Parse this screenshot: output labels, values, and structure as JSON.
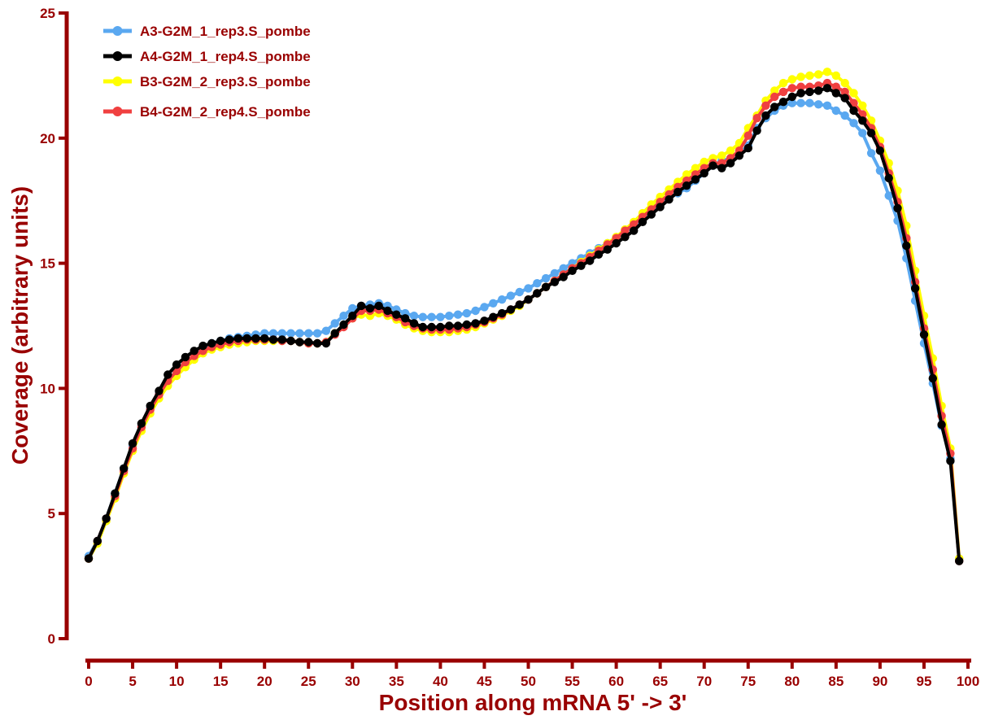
{
  "chart_data": {
    "type": "line",
    "title": "",
    "xlabel": "Position along mRNA 5' -> 3'",
    "ylabel": "Coverage (arbitrary units)",
    "xlim": [
      0,
      100
    ],
    "ylim": [
      0,
      25
    ],
    "xticks": [
      0,
      5,
      10,
      15,
      20,
      25,
      30,
      35,
      40,
      45,
      50,
      55,
      60,
      65,
      70,
      75,
      80,
      85,
      90,
      95,
      100
    ],
    "yticks": [
      0,
      5,
      10,
      15,
      20,
      25
    ],
    "legend_position": "top-left",
    "grid": false,
    "axis_color": "#990000",
    "x": [
      0,
      1,
      2,
      3,
      4,
      5,
      6,
      7,
      8,
      9,
      10,
      11,
      12,
      13,
      14,
      15,
      16,
      17,
      18,
      19,
      20,
      21,
      22,
      23,
      24,
      25,
      26,
      27,
      28,
      29,
      30,
      31,
      32,
      33,
      34,
      35,
      36,
      37,
      38,
      39,
      40,
      41,
      42,
      43,
      44,
      45,
      46,
      47,
      48,
      49,
      50,
      51,
      52,
      53,
      54,
      55,
      56,
      57,
      58,
      59,
      60,
      61,
      62,
      63,
      64,
      65,
      66,
      67,
      68,
      69,
      70,
      71,
      72,
      73,
      74,
      75,
      76,
      77,
      78,
      79,
      80,
      81,
      82,
      83,
      84,
      85,
      86,
      87,
      88,
      89,
      90,
      91,
      92,
      93,
      94,
      95,
      96,
      97,
      98,
      99
    ],
    "series": [
      {
        "name": "A3-G2M_1_rep3.S_pombe",
        "color": "#5aa8f0",
        "values": [
          3.3,
          3.9,
          4.8,
          5.8,
          6.8,
          7.7,
          8.5,
          9.2,
          9.8,
          10.3,
          10.7,
          11.0,
          11.3,
          11.6,
          11.8,
          11.9,
          12.0,
          12.05,
          12.1,
          12.15,
          12.2,
          12.2,
          12.2,
          12.2,
          12.2,
          12.2,
          12.2,
          12.3,
          12.6,
          12.9,
          13.2,
          13.3,
          13.35,
          13.4,
          13.3,
          13.15,
          13.0,
          12.9,
          12.85,
          12.85,
          12.85,
          12.9,
          12.95,
          13.0,
          13.1,
          13.25,
          13.4,
          13.55,
          13.7,
          13.85,
          14.0,
          14.2,
          14.4,
          14.6,
          14.8,
          15.0,
          15.2,
          15.4,
          15.6,
          15.8,
          16.0,
          16.25,
          16.5,
          16.8,
          17.1,
          17.4,
          17.6,
          17.8,
          18.0,
          18.3,
          18.6,
          18.9,
          19.1,
          19.2,
          19.4,
          19.7,
          20.4,
          20.8,
          21.1,
          21.3,
          21.4,
          21.4,
          21.4,
          21.35,
          21.3,
          21.1,
          20.9,
          20.6,
          20.2,
          19.4,
          18.7,
          17.7,
          16.7,
          15.2,
          13.5,
          11.8,
          10.2,
          8.5,
          7.2,
          3.2
        ]
      },
      {
        "name": "A4-G2M_1_rep4.S_pombe",
        "color": "#000000",
        "values": [
          3.2,
          3.9,
          4.8,
          5.8,
          6.8,
          7.8,
          8.6,
          9.3,
          9.9,
          10.55,
          10.95,
          11.25,
          11.5,
          11.7,
          11.8,
          11.9,
          11.95,
          12.0,
          12.0,
          12.0,
          12.0,
          11.95,
          11.95,
          11.9,
          11.85,
          11.85,
          11.8,
          11.8,
          12.2,
          12.55,
          12.9,
          13.3,
          13.2,
          13.3,
          13.1,
          12.95,
          12.8,
          12.6,
          12.45,
          12.45,
          12.45,
          12.5,
          12.5,
          12.55,
          12.6,
          12.7,
          12.85,
          13.0,
          13.15,
          13.35,
          13.55,
          13.8,
          14.05,
          14.25,
          14.45,
          14.7,
          14.9,
          15.1,
          15.35,
          15.55,
          15.8,
          16.05,
          16.3,
          16.65,
          16.95,
          17.25,
          17.55,
          17.85,
          18.1,
          18.35,
          18.6,
          18.9,
          18.8,
          19.0,
          19.3,
          19.6,
          20.3,
          20.9,
          21.25,
          21.45,
          21.65,
          21.8,
          21.85,
          21.9,
          22.0,
          21.8,
          21.6,
          21.1,
          20.7,
          20.2,
          19.5,
          18.4,
          17.2,
          15.7,
          14.0,
          12.15,
          10.4,
          8.55,
          7.1,
          3.1
        ]
      },
      {
        "name": "B3-G2M_2_rep3.S_pombe",
        "color": "#ffff00",
        "values": [
          3.2,
          3.8,
          4.7,
          5.6,
          6.6,
          7.5,
          8.3,
          9.0,
          9.6,
          10.1,
          10.5,
          10.85,
          11.15,
          11.4,
          11.55,
          11.65,
          11.75,
          11.8,
          11.85,
          11.9,
          11.9,
          11.9,
          11.9,
          11.9,
          11.85,
          11.8,
          11.8,
          11.85,
          12.2,
          12.5,
          12.8,
          12.95,
          12.9,
          13.0,
          12.9,
          12.75,
          12.55,
          12.4,
          12.3,
          12.25,
          12.25,
          12.25,
          12.3,
          12.35,
          12.45,
          12.6,
          12.75,
          12.9,
          13.1,
          13.3,
          13.55,
          13.8,
          14.05,
          14.3,
          14.55,
          14.8,
          15.05,
          15.3,
          15.55,
          15.8,
          16.05,
          16.35,
          16.65,
          17.0,
          17.35,
          17.65,
          17.95,
          18.25,
          18.55,
          18.8,
          19.05,
          19.2,
          19.3,
          19.5,
          19.8,
          20.4,
          20.9,
          21.5,
          21.9,
          22.2,
          22.35,
          22.45,
          22.5,
          22.55,
          22.65,
          22.5,
          22.2,
          21.8,
          21.3,
          20.7,
          19.9,
          19.0,
          17.9,
          16.5,
          14.7,
          12.9,
          11.2,
          9.3,
          7.6,
          3.2
        ]
      },
      {
        "name": "B4-G2M_2_rep4.S_pombe",
        "color": "#f04040",
        "values": [
          3.2,
          3.9,
          4.8,
          5.7,
          6.7,
          7.6,
          8.45,
          9.15,
          9.75,
          10.3,
          10.7,
          11.05,
          11.3,
          11.5,
          11.65,
          11.75,
          11.85,
          11.9,
          11.95,
          11.95,
          11.95,
          11.95,
          11.9,
          11.9,
          11.85,
          11.8,
          11.8,
          11.85,
          12.15,
          12.45,
          12.8,
          13.1,
          13.1,
          13.15,
          13.0,
          12.85,
          12.65,
          12.5,
          12.4,
          12.35,
          12.35,
          12.35,
          12.4,
          12.45,
          12.55,
          12.65,
          12.8,
          12.95,
          13.15,
          13.35,
          13.55,
          13.8,
          14.05,
          14.3,
          14.55,
          14.8,
          15.0,
          15.25,
          15.5,
          15.75,
          16.0,
          16.3,
          16.55,
          16.85,
          17.15,
          17.45,
          17.75,
          18.05,
          18.3,
          18.55,
          18.8,
          19.0,
          19.0,
          19.2,
          19.5,
          20.1,
          20.8,
          21.3,
          21.65,
          21.85,
          22.0,
          22.05,
          22.05,
          22.1,
          22.2,
          22.05,
          21.85,
          21.4,
          20.95,
          20.4,
          19.65,
          18.6,
          17.45,
          16.0,
          14.25,
          12.4,
          10.75,
          8.9,
          7.4,
          3.1
        ]
      }
    ]
  }
}
